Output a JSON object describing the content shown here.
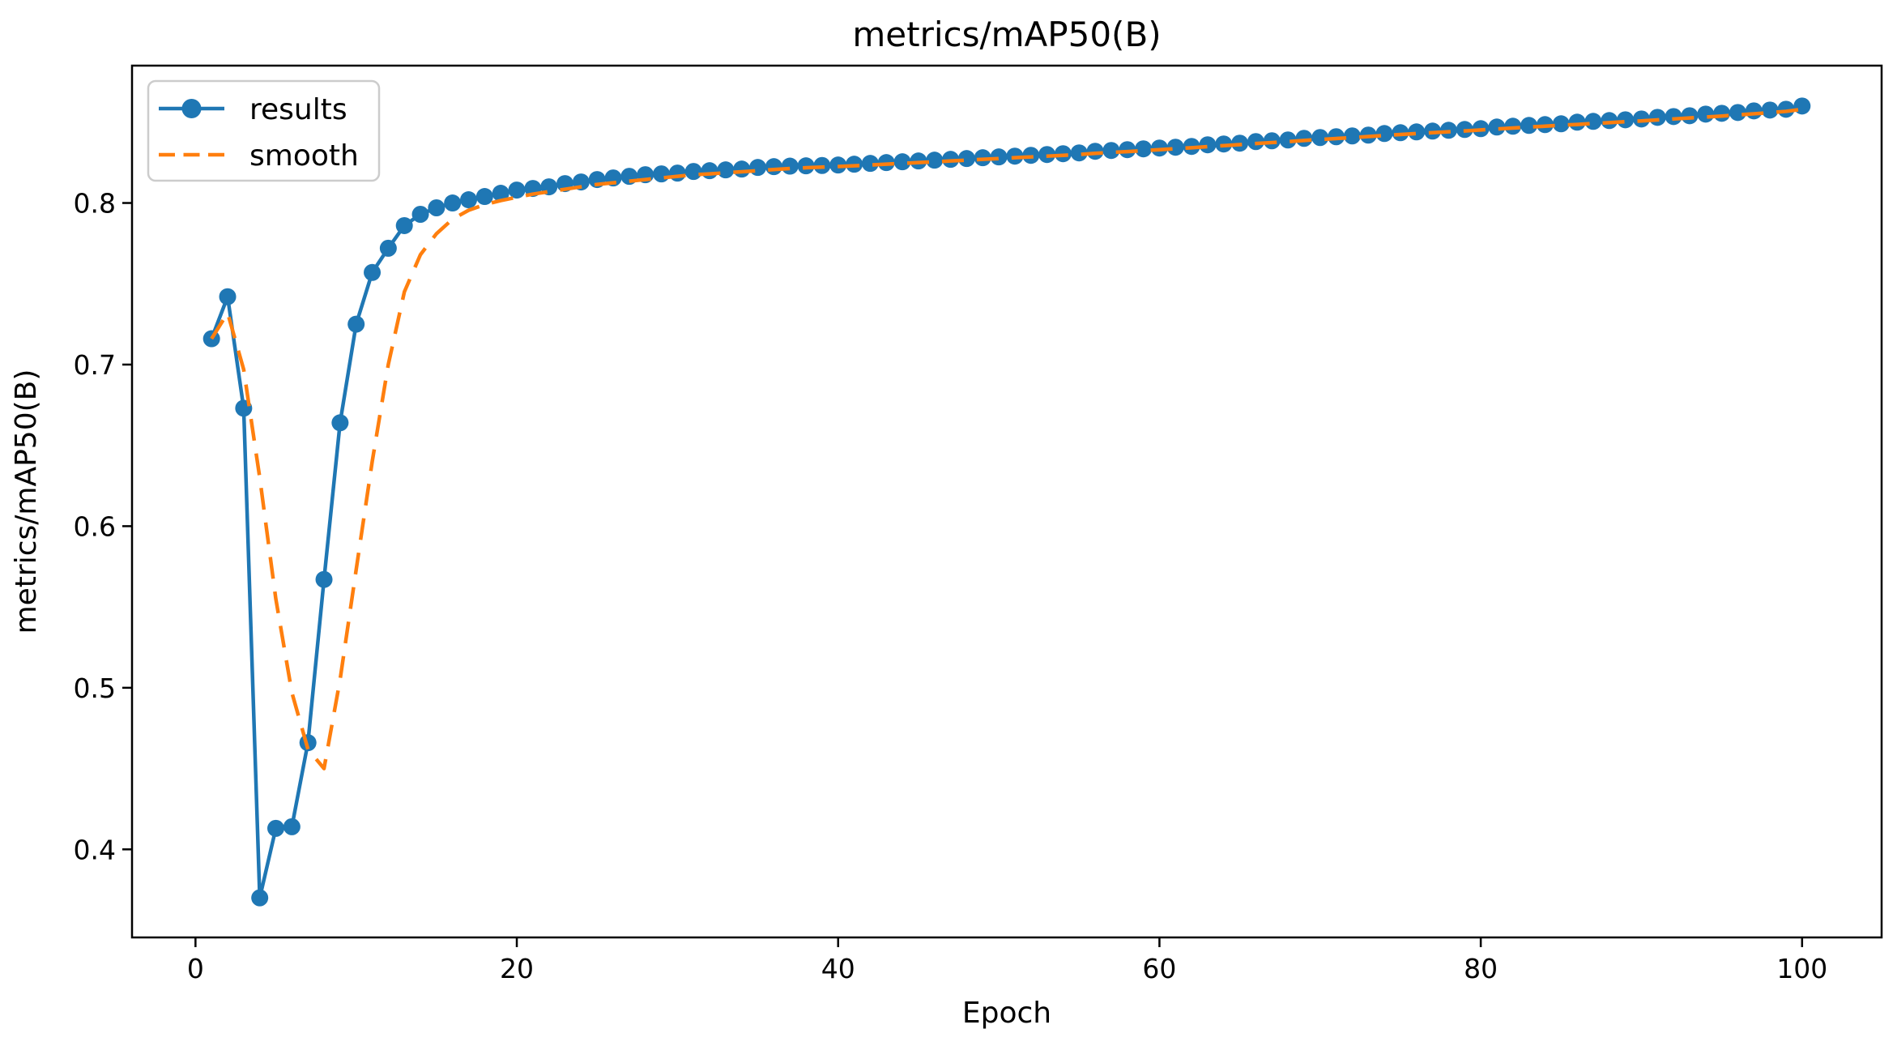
{
  "page": {
    "background": "#ffffff"
  },
  "chart_data": {
    "type": "line",
    "title": "metrics/mAP50(B)",
    "xlabel": "Epoch",
    "ylabel": "metrics/mAP50(B)",
    "grid": false,
    "legend_position": "upper left",
    "xlim": [
      -3.95,
      104.95
    ],
    "ylim": [
      0.3455,
      0.885
    ],
    "x_ticks": {
      "values": [
        0,
        20,
        40,
        60,
        80,
        100
      ],
      "labels": [
        "0",
        "20",
        "40",
        "60",
        "80",
        "100"
      ]
    },
    "y_ticks": {
      "values": [
        0.4,
        0.5,
        0.6,
        0.7,
        0.8
      ],
      "labels": [
        "0.4",
        "0.5",
        "0.6",
        "0.7",
        "0.8"
      ]
    },
    "x": [
      1,
      2,
      3,
      4,
      5,
      6,
      7,
      8,
      9,
      10,
      11,
      12,
      13,
      14,
      15,
      16,
      17,
      18,
      19,
      20,
      21,
      22,
      23,
      24,
      25,
      26,
      27,
      28,
      29,
      30,
      31,
      32,
      33,
      34,
      35,
      36,
      37,
      38,
      39,
      40,
      41,
      42,
      43,
      44,
      45,
      46,
      47,
      48,
      49,
      50,
      51,
      52,
      53,
      54,
      55,
      56,
      57,
      58,
      59,
      60,
      61,
      62,
      63,
      64,
      65,
      66,
      67,
      68,
      69,
      70,
      71,
      72,
      73,
      74,
      75,
      76,
      77,
      78,
      79,
      80,
      81,
      82,
      83,
      84,
      85,
      86,
      87,
      88,
      89,
      90,
      91,
      92,
      93,
      94,
      95,
      96,
      97,
      98,
      99,
      100
    ],
    "series": [
      {
        "name": "results",
        "color": "#1f77b4",
        "style": "solid",
        "marker": "circle",
        "values": [
          0.716,
          0.742,
          0.673,
          0.37,
          0.413,
          0.414,
          0.466,
          0.567,
          0.664,
          0.725,
          0.757,
          0.772,
          0.786,
          0.793,
          0.797,
          0.8,
          0.802,
          0.804,
          0.806,
          0.808,
          0.809,
          0.81,
          0.812,
          0.813,
          0.8145,
          0.8155,
          0.8165,
          0.8175,
          0.818,
          0.8185,
          0.8195,
          0.82,
          0.8205,
          0.821,
          0.822,
          0.8225,
          0.8228,
          0.823,
          0.8232,
          0.8235,
          0.824,
          0.8245,
          0.825,
          0.8255,
          0.826,
          0.8265,
          0.827,
          0.8275,
          0.828,
          0.8285,
          0.829,
          0.8295,
          0.83,
          0.8305,
          0.831,
          0.832,
          0.8325,
          0.833,
          0.8335,
          0.834,
          0.8345,
          0.835,
          0.836,
          0.8365,
          0.837,
          0.838,
          0.8385,
          0.839,
          0.84,
          0.8405,
          0.841,
          0.8415,
          0.842,
          0.843,
          0.8435,
          0.844,
          0.8445,
          0.845,
          0.8455,
          0.846,
          0.847,
          0.8475,
          0.848,
          0.8485,
          0.849,
          0.85,
          0.8505,
          0.851,
          0.8515,
          0.852,
          0.853,
          0.8535,
          0.854,
          0.855,
          0.8555,
          0.856,
          0.857,
          0.8575,
          0.858,
          0.86
        ]
      },
      {
        "name": "smooth",
        "color": "#ff7f0e",
        "style": "dashed",
        "marker": "none",
        "values": [
          0.716,
          0.732,
          0.697,
          0.63,
          0.555,
          0.497,
          0.462,
          0.45,
          0.505,
          0.573,
          0.64,
          0.7,
          0.745,
          0.768,
          0.781,
          0.79,
          0.7955,
          0.799,
          0.8015,
          0.8035,
          0.8055,
          0.807,
          0.8085,
          0.81,
          0.8115,
          0.8125,
          0.8135,
          0.8145,
          0.8155,
          0.8165,
          0.8175,
          0.818,
          0.8187,
          0.8193,
          0.82,
          0.8207,
          0.8213,
          0.8218,
          0.8222,
          0.8226,
          0.823,
          0.8235,
          0.824,
          0.8245,
          0.825,
          0.8255,
          0.826,
          0.8265,
          0.827,
          0.8275,
          0.828,
          0.8285,
          0.829,
          0.8295,
          0.83,
          0.8307,
          0.8313,
          0.8318,
          0.8324,
          0.833,
          0.8336,
          0.8342,
          0.8349,
          0.8355,
          0.8361,
          0.8368,
          0.8374,
          0.838,
          0.8387,
          0.8393,
          0.8399,
          0.8405,
          0.8411,
          0.8418,
          0.8424,
          0.843,
          0.8435,
          0.8441,
          0.8446,
          0.8452,
          0.8458,
          0.8464,
          0.847,
          0.8475,
          0.8481,
          0.8486,
          0.8492,
          0.8497,
          0.8503,
          0.8508,
          0.8514,
          0.852,
          0.8526,
          0.8532,
          0.8538,
          0.8545,
          0.8552,
          0.8559,
          0.8567,
          0.858
        ]
      }
    ]
  }
}
